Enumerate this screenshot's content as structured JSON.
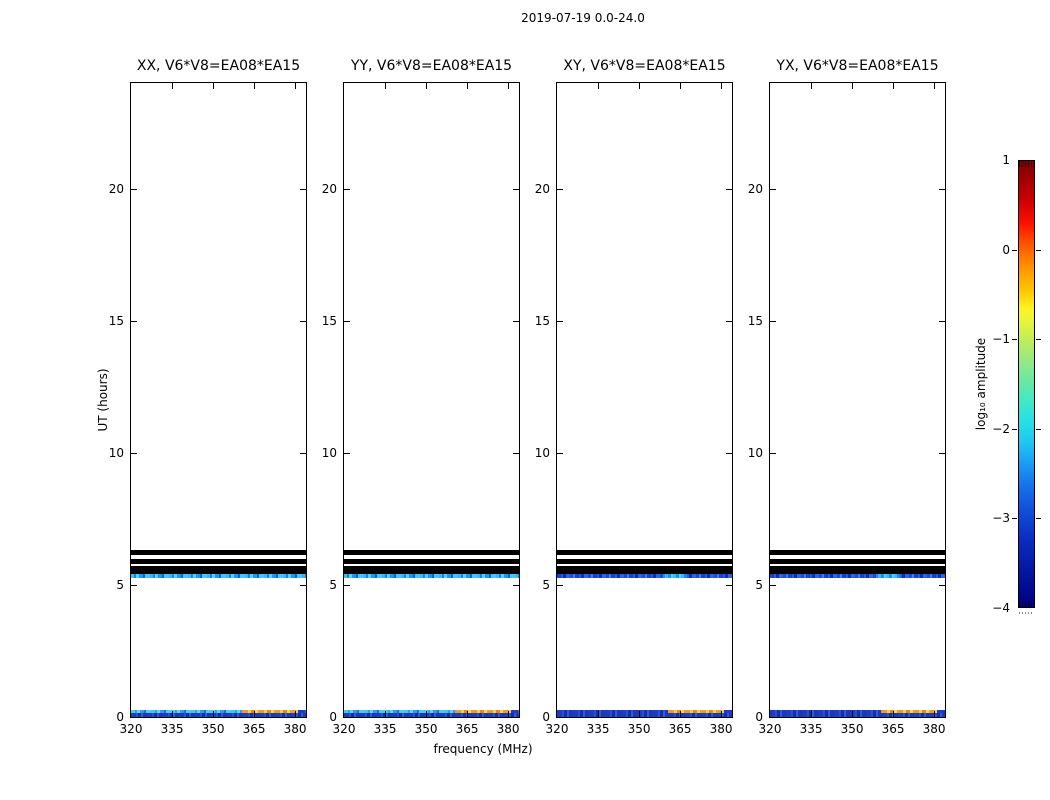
{
  "figure": {
    "suptitle": "2019-07-19 0.0-24.0",
    "xlabel": "frequency (MHz)",
    "ylabel": "UT (hours)"
  },
  "colorbar": {
    "label": "log₁₀ amplitude",
    "tick_labels": [
      "1",
      "0",
      "−1",
      "−2",
      "−3",
      "−4"
    ],
    "tick_values": [
      1,
      0,
      -1,
      -2,
      -3,
      -4
    ],
    "colormap": "jet"
  },
  "chart_data": {
    "type": "heatmap",
    "title": "2019-07-19 0.0-24.0",
    "xlabel": "frequency (MHz)",
    "ylabel": "UT (hours)",
    "x_axis": {
      "unit": "MHz",
      "min": 320,
      "max": 384,
      "tick_values": [
        320,
        335,
        350,
        365,
        380
      ],
      "tick_labels": [
        "320",
        "335",
        "350",
        "365",
        "380"
      ]
    },
    "y_axis": {
      "unit": "hours",
      "min": 0,
      "max": 24,
      "tick_values": [
        0,
        5,
        10,
        15,
        20
      ],
      "tick_labels": [
        "0",
        "5",
        "10",
        "15",
        "20"
      ]
    },
    "colorbar": {
      "label": "log₁₀ amplitude",
      "min": -4,
      "max": 1,
      "tick_values": [
        1,
        0,
        -1,
        -2,
        -3,
        -4
      ],
      "colormap": "jet"
    },
    "panels": [
      {
        "title": "XX, V6*V8=EA08*EA15",
        "polarization": "XX",
        "band_style": "cyan",
        "bottom_style": "cyan"
      },
      {
        "title": "YY, V6*V8=EA08*EA15",
        "polarization": "YY",
        "band_style": "cyan",
        "bottom_style": "cyan"
      },
      {
        "title": "XY, V6*V8=EA08*EA15",
        "polarization": "XY",
        "band_style": "blue",
        "bottom_style": "blue"
      },
      {
        "title": "YX, V6*V8=EA08*EA15",
        "polarization": "YX",
        "band_style": "blue",
        "bottom_style": "blue"
      }
    ],
    "features": {
      "flagged_black_rows_hours": [
        [
          6.13,
          6.32
        ],
        [
          5.82,
          6.0
        ],
        [
          5.42,
          5.72
        ]
      ],
      "scan_band_hours": [
        5.27,
        5.42
      ],
      "scan_band_log10_amplitude": {
        "XX": -2.2,
        "YY": -2.2,
        "XY": -3.0,
        "YX": -3.0
      },
      "bottom_rows_hours": [
        [
          0.15,
          0.26
        ],
        [
          0.0,
          0.15
        ]
      ],
      "bottom_rows_log10_amplitude": {
        "upper_XX_YY": -2.2,
        "upper_XY_YX": -3.2,
        "lower_all": -3.2
      },
      "bright_streak_mhz": [
        360.5,
        381.0
      ],
      "bright_streak_log10_amplitude": -0.3,
      "bright_streak_location": "upper bottom row, all panels",
      "band_bright_patch_mhz": [
        359.5,
        367.5
      ],
      "right_cap_mhz": [
        381.0,
        383.5
      ]
    }
  }
}
